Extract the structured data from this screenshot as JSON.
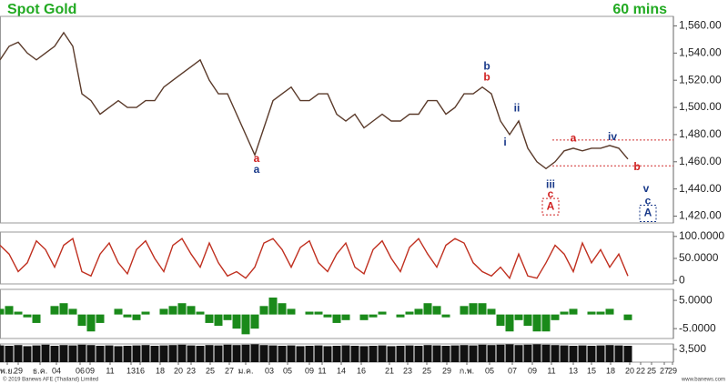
{
  "title": "Spot Gold",
  "timeframe": "60 mins",
  "footer_left": "© 2019 Banews AFE (Thailand) Limited",
  "footer_right": "www.banews.com",
  "chart_data": [
    {
      "type": "line",
      "color": "#5a3a2a",
      "xlim": [
        0,
        74
      ],
      "ylim": [
        1415,
        1567
      ],
      "yticks": [
        {
          "value": 1560,
          "label": "1,560.00"
        },
        {
          "value": 1540,
          "label": "1,540.00"
        },
        {
          "value": 1520,
          "label": "1,520.00"
        },
        {
          "value": 1500,
          "label": "1,500.00"
        },
        {
          "value": 1480,
          "label": "1,480.00"
        },
        {
          "value": 1460,
          "label": "1,460.00"
        },
        {
          "value": 1440,
          "label": "1,440.00"
        },
        {
          "value": 1420,
          "label": "1,420.00"
        }
      ],
      "values": [
        1535,
        1545,
        1548,
        1540,
        1535,
        1540,
        1545,
        1555,
        1545,
        1510,
        1505,
        1495,
        1500,
        1505,
        1500,
        1500,
        1505,
        1505,
        1515,
        1520,
        1525,
        1530,
        1535,
        1520,
        1510,
        1510,
        1495,
        1480,
        1465,
        1485,
        1505,
        1510,
        1515,
        1505,
        1505,
        1510,
        1510,
        1495,
        1490,
        1495,
        1485,
        1490,
        1495,
        1490,
        1490,
        1495,
        1495,
        1505,
        1505,
        1495,
        1500,
        1510,
        1510,
        1515,
        1510,
        1490,
        1480,
        1490,
        1470,
        1460,
        1455,
        1460,
        1468,
        1470,
        1468,
        1470,
        1470,
        1472,
        1470,
        1462
      ],
      "levels": [
        {
          "value": 1476,
          "from": 60.7,
          "color": "#d03030"
        },
        {
          "value": 1457,
          "from": 60.7,
          "color": "#d03030"
        }
      ],
      "annotations": [
        {
          "text": "a",
          "color": "#d02020",
          "x": 28.2,
          "y": 1462
        },
        {
          "text": "a",
          "color": "#1a3a8a",
          "x": 28.2,
          "y": 1454
        },
        {
          "text": "b",
          "color": "#1a3a8a",
          "x": 53.5,
          "y": 1530
        },
        {
          "text": "b",
          "color": "#d02020",
          "x": 53.5,
          "y": 1522
        },
        {
          "text": "ii",
          "color": "#1a3a8a",
          "x": 56.8,
          "y": 1499
        },
        {
          "text": "i",
          "color": "#1a3a8a",
          "x": 55.5,
          "y": 1474
        },
        {
          "text": "iii",
          "color": "#1a3a8a",
          "x": 60.5,
          "y": 1443
        },
        {
          "text": "c",
          "color": "#d02020",
          "x": 60.5,
          "y": 1436
        },
        {
          "text": "A",
          "color": "#d02020",
          "x": 60.5,
          "y": 1427,
          "boxed": true
        },
        {
          "text": "a",
          "color": "#d02020",
          "x": 63,
          "y": 1477
        },
        {
          "text": "iv",
          "color": "#1a3a8a",
          "x": 67.3,
          "y": 1478
        },
        {
          "text": "b",
          "color": "#d02020",
          "x": 70,
          "y": 1456
        },
        {
          "text": "v",
          "color": "#1a3a8a",
          "x": 71,
          "y": 1440
        },
        {
          "text": "c",
          "color": "#1a3a8a",
          "x": 71.2,
          "y": 1431
        },
        {
          "text": "A",
          "color": "#1a3a8a",
          "x": 71.2,
          "y": 1422,
          "boxed": true
        }
      ]
    },
    {
      "type": "line",
      "color": "#c03020",
      "xlim": [
        0,
        74
      ],
      "ylim": [
        -8,
        110
      ],
      "yticks": [
        {
          "value": 100,
          "label": "100.0000"
        },
        {
          "value": 50,
          "label": "50.0000"
        },
        0
      ],
      "values": [
        80,
        60,
        20,
        40,
        90,
        70,
        30,
        80,
        95,
        20,
        10,
        60,
        85,
        40,
        15,
        70,
        90,
        50,
        20,
        80,
        95,
        60,
        30,
        85,
        40,
        10,
        20,
        5,
        30,
        85,
        95,
        70,
        30,
        75,
        90,
        40,
        20,
        60,
        85,
        30,
        15,
        70,
        90,
        50,
        20,
        75,
        95,
        60,
        30,
        80,
        95,
        85,
        40,
        20,
        10,
        30,
        5,
        60,
        10,
        5,
        40,
        80,
        60,
        20,
        85,
        40,
        70,
        30,
        60,
        10
      ]
    },
    {
      "type": "bar",
      "color": "#1a8a1a",
      "xlim": [
        0,
        74
      ],
      "ylim": [
        -8.5,
        8.9
      ],
      "yticks": [
        {
          "value": 5,
          "label": "5.0000"
        },
        {
          "value": -5,
          "label": "-5.0000"
        }
      ],
      "values": [
        2,
        3,
        1,
        -1,
        -3,
        0,
        3,
        4,
        2,
        -4,
        -6,
        -3,
        0,
        2,
        -1,
        -2,
        1,
        0,
        2,
        3,
        4,
        3,
        1,
        -3,
        -4,
        -2,
        -5,
        -7,
        -5,
        3,
        6,
        4,
        2,
        0,
        1,
        1,
        -1,
        -3,
        -2,
        0,
        -2,
        -1,
        1,
        0,
        -1,
        1,
        2,
        4,
        3,
        -1,
        0,
        3,
        4,
        4,
        2,
        -4,
        -6,
        -2,
        -4,
        -6,
        -6,
        -2,
        1,
        2,
        0,
        1,
        1,
        2,
        0,
        -2
      ]
    },
    {
      "type": "bar",
      "color": "#111111",
      "xlim": [
        0,
        74
      ],
      "ylim": [
        0,
        5000
      ],
      "yticks": [
        {
          "value": 3500,
          "label": "3,500"
        }
      ],
      "values": [
        4600,
        4500,
        4700,
        4400,
        4600,
        4800,
        4500,
        4700,
        4600,
        4800,
        4700,
        4500,
        4600,
        4400,
        4500,
        4600,
        4700,
        4500,
        4600,
        4700,
        4800,
        4600,
        4500,
        4700,
        4600,
        4800,
        4700,
        4800,
        4900,
        4700,
        4600,
        4500,
        4600,
        4400,
        4500,
        4600,
        4400,
        4500,
        4600,
        4500,
        4400,
        4500,
        4600,
        4400,
        4500,
        4600,
        4500,
        4700,
        4600,
        4500,
        4600,
        4700,
        4600,
        4800,
        4700,
        4800,
        4900,
        4700,
        4800,
        4900,
        4800,
        4700,
        4600,
        4500,
        4600,
        4500,
        4600,
        4700,
        4600,
        4500
      ],
      "xticks": [
        {
          "value": 0.8,
          "label": "พ.ย."
        },
        {
          "value": 2,
          "label": "29"
        },
        {
          "value": 4.4,
          "label": "ธ.ค."
        },
        {
          "value": 6.2,
          "label": "04"
        },
        {
          "value": 8.8,
          "label": "06"
        },
        {
          "value": 9.9,
          "label": "09"
        },
        {
          "value": 12.1,
          "label": "11"
        },
        {
          "value": 14.4,
          "label": "13"
        },
        {
          "value": 15.4,
          "label": "16"
        },
        {
          "value": 17.6,
          "label": "18"
        },
        {
          "value": 19.6,
          "label": "20"
        },
        {
          "value": 21,
          "label": "23"
        },
        {
          "value": 23.1,
          "label": "25"
        },
        {
          "value": 25.2,
          "label": "27"
        },
        {
          "value": 27,
          "label": "ม.ค."
        },
        {
          "value": 29.6,
          "label": "03"
        },
        {
          "value": 31.6,
          "label": "05"
        },
        {
          "value": 34,
          "label": "09"
        },
        {
          "value": 35.4,
          "label": "11"
        },
        {
          "value": 37.5,
          "label": "14"
        },
        {
          "value": 39.7,
          "label": "16"
        },
        {
          "value": 42.8,
          "label": "21"
        },
        {
          "value": 44.8,
          "label": "23"
        },
        {
          "value": 46.9,
          "label": "25"
        },
        {
          "value": 49.1,
          "label": "29"
        },
        {
          "value": 51.3,
          "label": "ก.พ."
        },
        {
          "value": 53.8,
          "label": "05"
        },
        {
          "value": 56.3,
          "label": "07"
        },
        {
          "value": 58.5,
          "label": "09"
        },
        {
          "value": 60.6,
          "label": "11"
        },
        {
          "value": 63,
          "label": "13"
        },
        {
          "value": 65,
          "label": "15"
        },
        {
          "value": 67.1,
          "label": "18"
        },
        {
          "value": 69.2,
          "label": "20"
        },
        {
          "value": 70.4,
          "label": "22"
        },
        {
          "value": 71.6,
          "label": "25"
        },
        {
          "value": 73,
          "label": "27"
        },
        {
          "value": 73.9,
          "label": "29"
        }
      ]
    }
  ]
}
